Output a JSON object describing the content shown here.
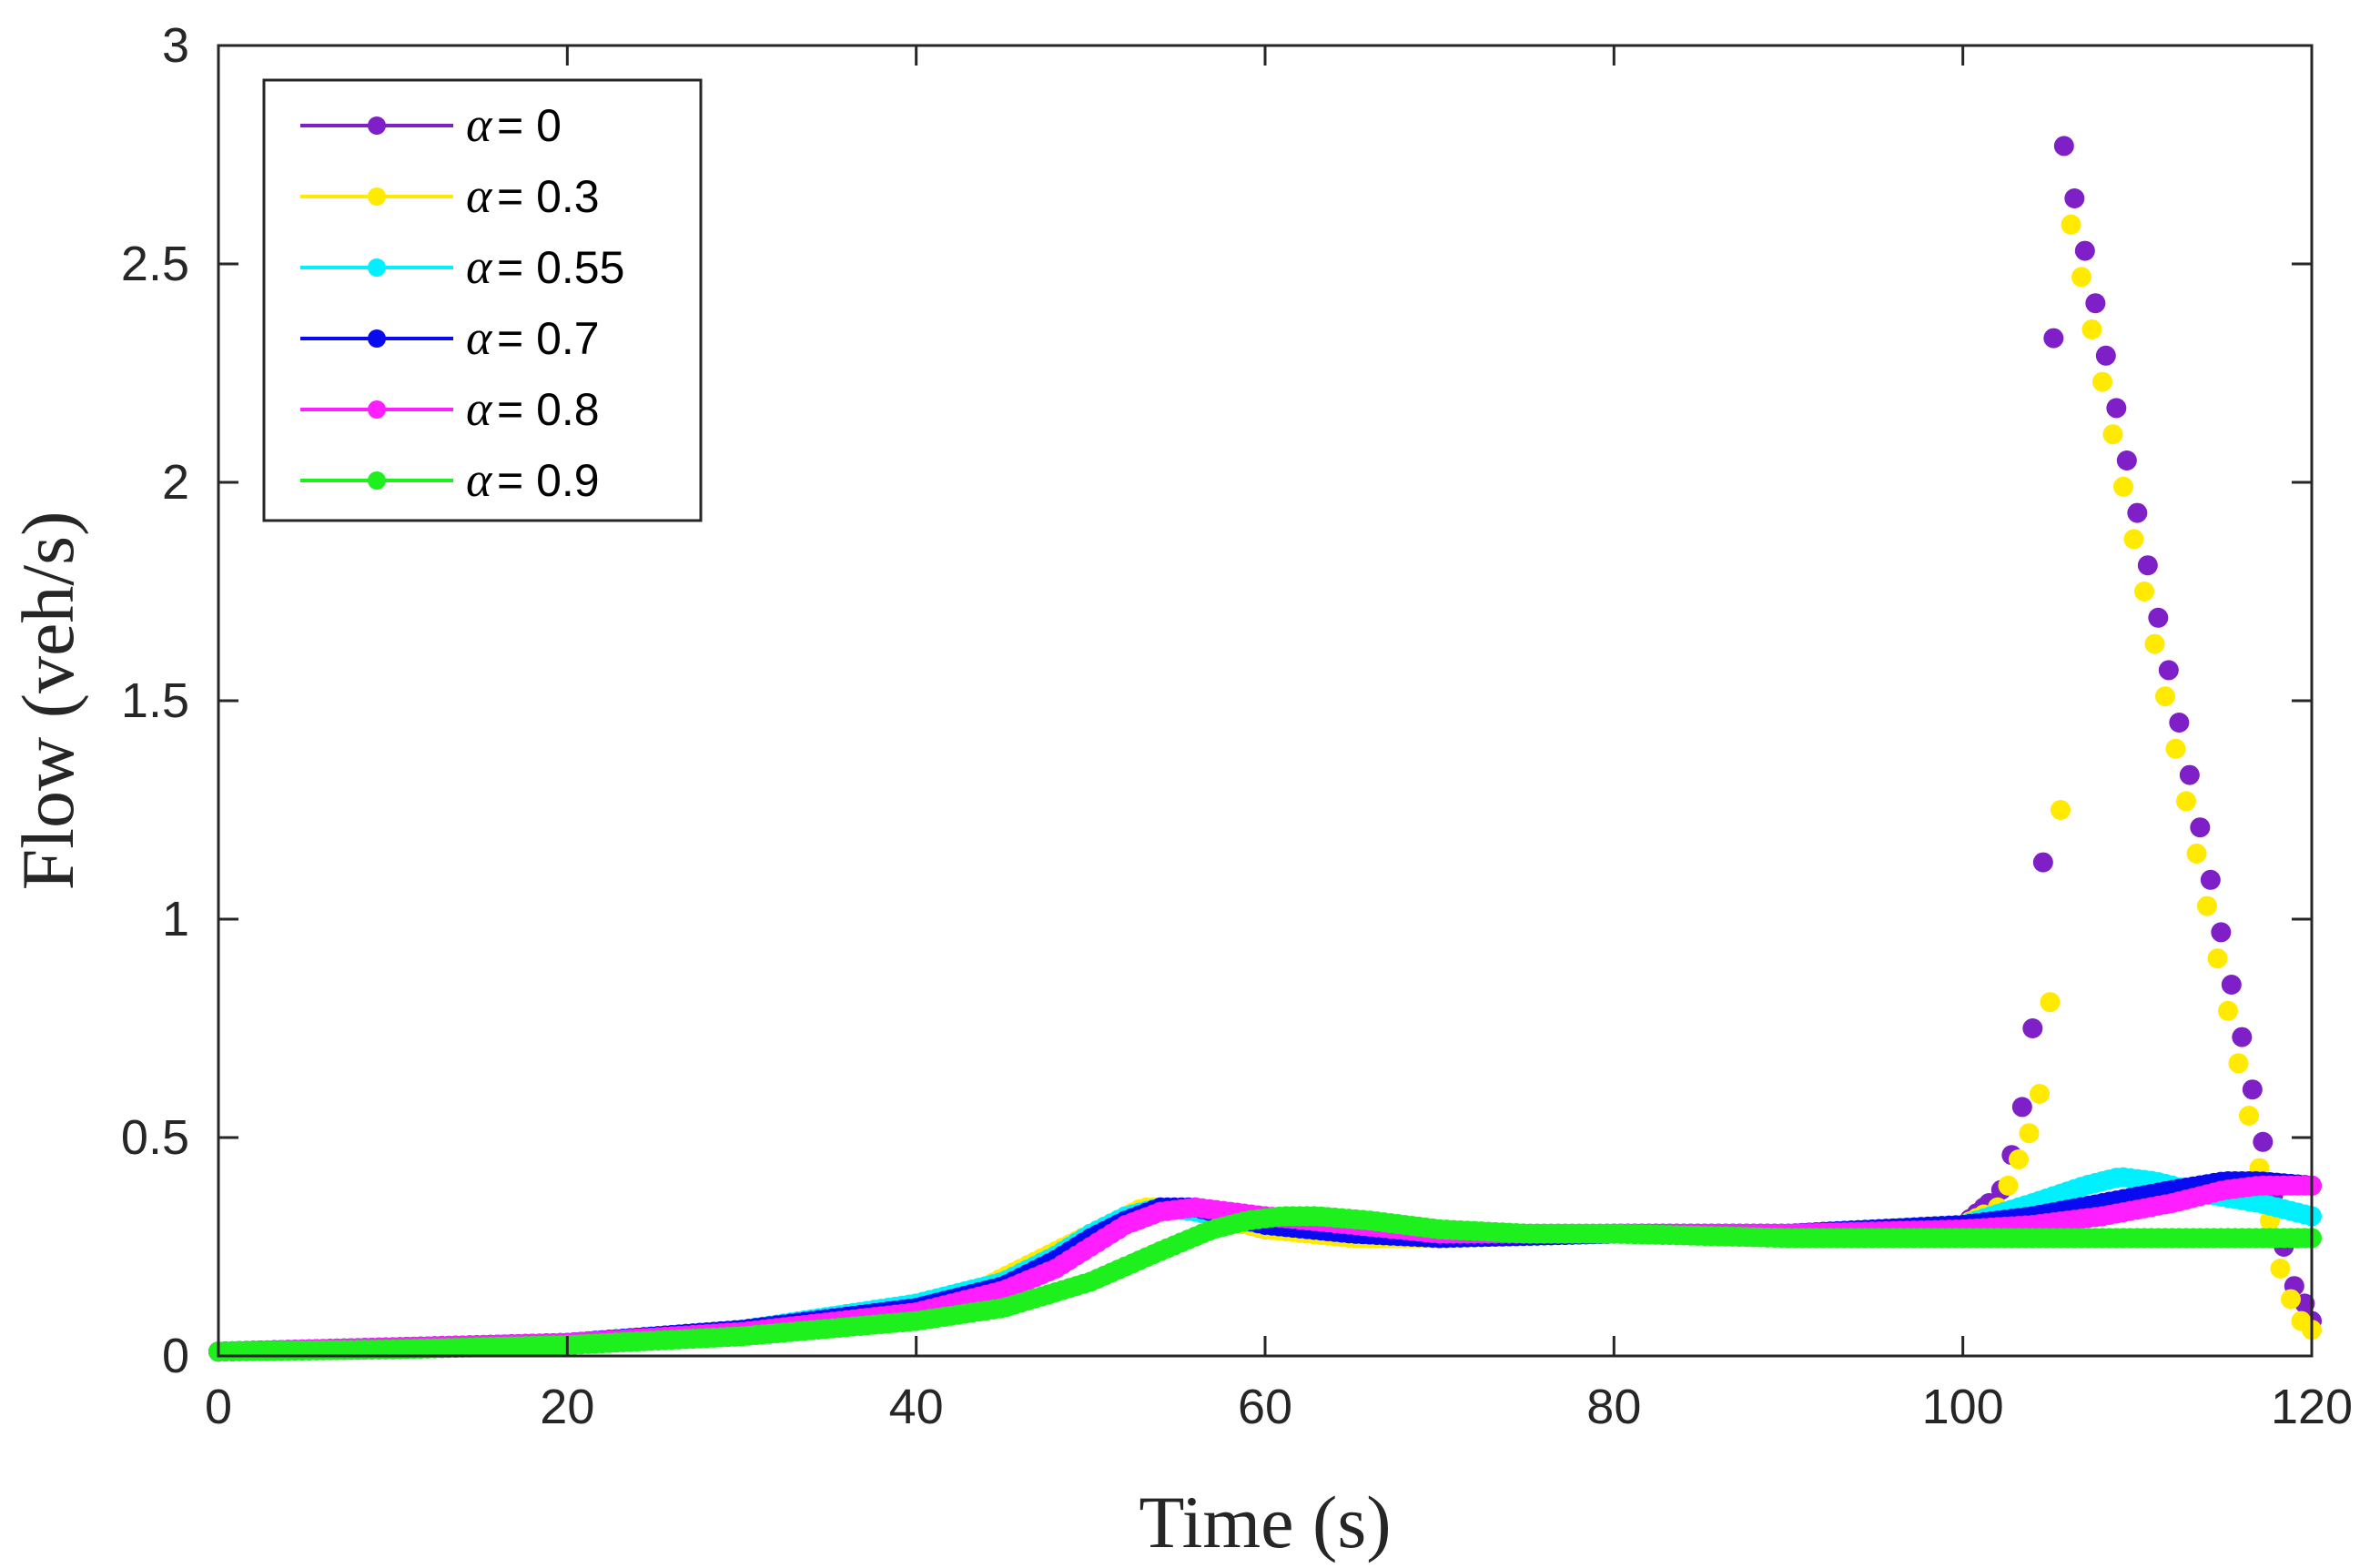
{
  "chart_data": {
    "type": "scatter",
    "title": "",
    "xlabel": "Time (s)",
    "ylabel": "Flow (veh/s)",
    "xlim": [
      0,
      120
    ],
    "ylim": [
      0,
      3
    ],
    "xticks": [
      "0",
      "20",
      "40",
      "60",
      "80",
      "100",
      "120"
    ],
    "yticks": [
      "0",
      "0.5",
      "1",
      "1.5",
      "2",
      "2.5",
      "3"
    ],
    "grid": false,
    "legend_position": "top-left",
    "legend_symbol": "α",
    "series": [
      {
        "name": "α = 0",
        "label_value": " = 0",
        "color": "#7E1FC8",
        "points": [
          [
            0,
            0.01
          ],
          [
            10,
            0.02
          ],
          [
            20,
            0.03
          ],
          [
            25,
            0.045
          ],
          [
            30,
            0.06
          ],
          [
            35,
            0.08
          ],
          [
            40,
            0.11
          ],
          [
            44,
            0.15
          ],
          [
            48,
            0.22
          ],
          [
            51,
            0.29
          ],
          [
            53,
            0.33
          ],
          [
            55,
            0.34
          ],
          [
            57,
            0.32
          ],
          [
            60,
            0.29
          ],
          [
            65,
            0.275
          ],
          [
            70,
            0.27
          ],
          [
            80,
            0.28
          ],
          [
            90,
            0.28
          ],
          [
            95,
            0.29
          ],
          [
            100,
            0.3
          ],
          [
            101.5,
            0.35
          ],
          [
            102.2,
            0.38
          ],
          [
            102.8,
            0.46
          ],
          [
            103.4,
            0.57
          ],
          [
            104.0,
            0.75
          ],
          [
            104.6,
            1.13
          ],
          [
            105.2,
            2.33
          ],
          [
            105.8,
            2.77
          ],
          [
            106.4,
            2.65
          ],
          [
            107.0,
            2.53
          ],
          [
            107.6,
            2.41
          ],
          [
            108.2,
            2.29
          ],
          [
            108.8,
            2.17
          ],
          [
            109.4,
            2.05
          ],
          [
            110.0,
            1.93
          ],
          [
            110.6,
            1.81
          ],
          [
            111.2,
            1.69
          ],
          [
            111.8,
            1.57
          ],
          [
            112.4,
            1.45
          ],
          [
            113.0,
            1.33
          ],
          [
            113.6,
            1.21
          ],
          [
            114.2,
            1.09
          ],
          [
            114.8,
            0.97
          ],
          [
            115.4,
            0.85
          ],
          [
            116.0,
            0.73
          ],
          [
            116.6,
            0.61
          ],
          [
            117.2,
            0.49
          ],
          [
            117.8,
            0.37
          ],
          [
            118.4,
            0.25
          ],
          [
            119.0,
            0.16
          ],
          [
            119.6,
            0.12
          ],
          [
            120,
            0.08
          ]
        ]
      },
      {
        "name": "α = 0.3",
        "label_value": " = 0.3",
        "color": "#FFEA00",
        "points": [
          [
            0,
            0.01
          ],
          [
            10,
            0.02
          ],
          [
            20,
            0.03
          ],
          [
            25,
            0.045
          ],
          [
            30,
            0.06
          ],
          [
            35,
            0.085
          ],
          [
            40,
            0.12
          ],
          [
            44,
            0.16
          ],
          [
            48,
            0.24
          ],
          [
            51,
            0.3
          ],
          [
            53,
            0.34
          ],
          [
            55,
            0.34
          ],
          [
            57,
            0.32
          ],
          [
            60,
            0.29
          ],
          [
            65,
            0.27
          ],
          [
            70,
            0.27
          ],
          [
            80,
            0.28
          ],
          [
            90,
            0.28
          ],
          [
            95,
            0.29
          ],
          [
            100,
            0.3
          ],
          [
            102.0,
            0.34
          ],
          [
            102.6,
            0.39
          ],
          [
            103.2,
            0.45
          ],
          [
            103.8,
            0.51
          ],
          [
            104.4,
            0.6
          ],
          [
            105.0,
            0.81
          ],
          [
            105.6,
            1.25
          ],
          [
            106.2,
            2.59
          ],
          [
            106.8,
            2.47
          ],
          [
            107.4,
            2.35
          ],
          [
            108.0,
            2.23
          ],
          [
            108.6,
            2.11
          ],
          [
            109.2,
            1.99
          ],
          [
            109.8,
            1.87
          ],
          [
            110.4,
            1.75
          ],
          [
            111.0,
            1.63
          ],
          [
            111.6,
            1.51
          ],
          [
            112.2,
            1.39
          ],
          [
            112.8,
            1.27
          ],
          [
            113.4,
            1.15
          ],
          [
            114.0,
            1.03
          ],
          [
            114.6,
            0.91
          ],
          [
            115.2,
            0.79
          ],
          [
            115.8,
            0.67
          ],
          [
            116.4,
            0.55
          ],
          [
            117.0,
            0.43
          ],
          [
            117.6,
            0.31
          ],
          [
            118.2,
            0.2
          ],
          [
            118.8,
            0.13
          ],
          [
            119.4,
            0.08
          ],
          [
            120,
            0.06
          ]
        ]
      },
      {
        "name": "α = 0.55",
        "label_value": " = 0.55",
        "color": "#00F0FF",
        "points": [
          [
            0,
            0.01
          ],
          [
            10,
            0.02
          ],
          [
            20,
            0.03
          ],
          [
            30,
            0.06
          ],
          [
            40,
            0.12
          ],
          [
            45,
            0.17
          ],
          [
            48,
            0.23
          ],
          [
            50,
            0.28
          ],
          [
            52,
            0.32
          ],
          [
            54,
            0.34
          ],
          [
            56,
            0.33
          ],
          [
            60,
            0.3
          ],
          [
            65,
            0.28
          ],
          [
            70,
            0.27
          ],
          [
            80,
            0.28
          ],
          [
            90,
            0.28
          ],
          [
            100,
            0.3
          ],
          [
            104,
            0.35
          ],
          [
            107,
            0.39
          ],
          [
            109,
            0.41
          ],
          [
            111,
            0.4
          ],
          [
            114,
            0.37
          ],
          [
            117,
            0.35
          ],
          [
            120,
            0.32
          ]
        ]
      },
      {
        "name": "α = 0.7",
        "label_value": " = 0.7",
        "color": "#0A0AF0",
        "points": [
          [
            0,
            0.01
          ],
          [
            10,
            0.02
          ],
          [
            20,
            0.03
          ],
          [
            30,
            0.06
          ],
          [
            40,
            0.11
          ],
          [
            45,
            0.16
          ],
          [
            48,
            0.22
          ],
          [
            50,
            0.27
          ],
          [
            52,
            0.31
          ],
          [
            54,
            0.34
          ],
          [
            56,
            0.34
          ],
          [
            58,
            0.32
          ],
          [
            60,
            0.3
          ],
          [
            65,
            0.28
          ],
          [
            70,
            0.27
          ],
          [
            80,
            0.28
          ],
          [
            90,
            0.28
          ],
          [
            100,
            0.3
          ],
          [
            104,
            0.32
          ],
          [
            108,
            0.35
          ],
          [
            112,
            0.38
          ],
          [
            115,
            0.4
          ],
          [
            117,
            0.4
          ],
          [
            120,
            0.39
          ]
        ]
      },
      {
        "name": "α = 0.8",
        "label_value": " = 0.8",
        "color": "#FF1EFF",
        "points": [
          [
            0,
            0.01
          ],
          [
            10,
            0.02
          ],
          [
            20,
            0.03
          ],
          [
            30,
            0.055
          ],
          [
            40,
            0.1
          ],
          [
            45,
            0.15
          ],
          [
            48,
            0.2
          ],
          [
            50,
            0.25
          ],
          [
            52,
            0.3
          ],
          [
            54,
            0.33
          ],
          [
            56,
            0.34
          ],
          [
            58,
            0.33
          ],
          [
            60,
            0.32
          ],
          [
            65,
            0.3
          ],
          [
            70,
            0.28
          ],
          [
            80,
            0.28
          ],
          [
            90,
            0.28
          ],
          [
            100,
            0.29
          ],
          [
            104,
            0.3
          ],
          [
            108,
            0.32
          ],
          [
            112,
            0.35
          ],
          [
            115,
            0.38
          ],
          [
            117,
            0.39
          ],
          [
            120,
            0.39
          ]
        ]
      },
      {
        "name": "α = 0.9",
        "label_value": " = 0.9",
        "color": "#1EF01E",
        "points": [
          [
            0,
            0.01
          ],
          [
            10,
            0.015
          ],
          [
            20,
            0.025
          ],
          [
            30,
            0.045
          ],
          [
            40,
            0.08
          ],
          [
            45,
            0.11
          ],
          [
            50,
            0.17
          ],
          [
            54,
            0.24
          ],
          [
            57,
            0.29
          ],
          [
            59,
            0.31
          ],
          [
            61,
            0.32
          ],
          [
            63,
            0.32
          ],
          [
            66,
            0.31
          ],
          [
            70,
            0.29
          ],
          [
            75,
            0.28
          ],
          [
            80,
            0.28
          ],
          [
            90,
            0.27
          ],
          [
            100,
            0.27
          ],
          [
            110,
            0.27
          ],
          [
            115,
            0.27
          ],
          [
            120,
            0.27
          ]
        ]
      }
    ]
  }
}
